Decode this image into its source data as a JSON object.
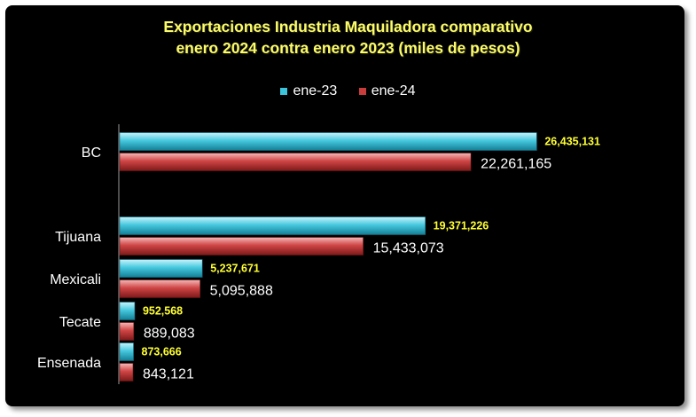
{
  "chart_data": {
    "type": "bar",
    "orientation": "horizontal",
    "title": [
      "Exportaciones Industria Maquiladora comparativo",
      "enero 2024 contra enero 2023 (miles de pesos)"
    ],
    "categories": [
      "BC",
      "Tijuana",
      "Mexicali",
      "Tecate",
      "Ensenada"
    ],
    "series": [
      {
        "name": "ene-23",
        "color": "#3cc4dc",
        "values": [
          26435131,
          19371226,
          5237671,
          952568,
          873666
        ],
        "labels": [
          "26,435,131",
          "19,371,226",
          "5,237,671",
          "952,568",
          "873,666"
        ]
      },
      {
        "name": "ene-24",
        "color": "#c83c3c",
        "values": [
          22261165,
          15433073,
          5095888,
          889083,
          843121
        ],
        "labels": [
          "22,261,165",
          "15,433,073",
          "5,095,888",
          "889,083",
          "843,121"
        ]
      }
    ],
    "xlabel": "",
    "ylabel": "",
    "xlim": [
      0,
      29000000
    ],
    "legend_position": "top",
    "grid": false
  }
}
